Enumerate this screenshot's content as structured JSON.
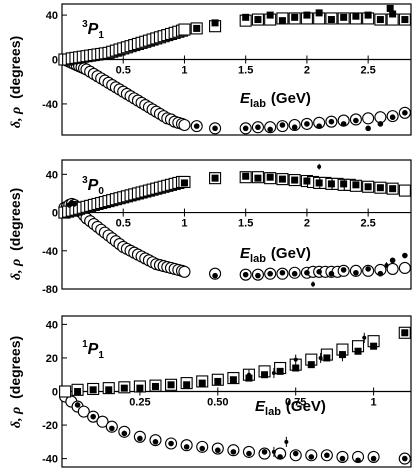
{
  "figure": {
    "ylabel": "δ, ρ (degrees)",
    "ylabel_symbols": "δ, ρ",
    "ylabel_unit": "(degrees)"
  },
  "chart_data": [
    {
      "type": "scatter",
      "panel_label": {
        "sup": "3",
        "letter": "P",
        "sub": "1"
      },
      "xlabel": {
        "main": "E",
        "sub": "lab",
        "unit": "(GeV)"
      },
      "xlim": [
        0,
        2.85
      ],
      "ylim": [
        -68,
        50
      ],
      "xticks": [
        0.5,
        1,
        1.5,
        2,
        2.5
      ],
      "xtick_labels": [
        "0.5",
        "1",
        "1.5",
        "2",
        "2.5"
      ],
      "yticks": [
        -40,
        0,
        40
      ],
      "ytick_labels": [
        "-40",
        "0",
        "40"
      ],
      "grid": false,
      "legend": "none",
      "series": [
        {
          "marker": "open-square",
          "x": [
            0.02,
            0.05,
            0.08,
            0.11,
            0.14,
            0.17,
            0.2,
            0.23,
            0.26,
            0.29,
            0.32,
            0.35,
            0.38,
            0.41,
            0.44,
            0.47,
            0.5,
            0.53,
            0.56,
            0.59,
            0.62,
            0.65,
            0.68,
            0.71,
            0.74,
            0.77,
            0.8,
            0.83,
            0.86,
            0.89,
            0.92,
            0.95,
            0.98,
            1.0,
            1.1,
            1.25,
            1.5,
            1.6,
            1.7,
            1.8,
            1.9,
            2.0,
            2.1,
            2.2,
            2.3,
            2.4,
            2.5,
            2.6,
            2.7,
            2.8
          ],
          "y": [
            0,
            0,
            1,
            1.5,
            2,
            2.5,
            3,
            3.5,
            4,
            4.5,
            5,
            5.5,
            6,
            7,
            8,
            9,
            10,
            11,
            12,
            13,
            14,
            15,
            16,
            17,
            18,
            19,
            20,
            21,
            22,
            23,
            24,
            25,
            26,
            27,
            28,
            30,
            35,
            36,
            36,
            37,
            37,
            37,
            37,
            37,
            37,
            37,
            37,
            36,
            36,
            36
          ]
        },
        {
          "marker": "filled-square",
          "x": [
            1.1,
            1.25,
            1.5,
            1.6,
            1.7,
            1.8,
            1.9,
            2.0,
            2.1,
            2.2,
            2.3,
            2.4,
            2.5,
            2.6,
            2.68,
            2.7,
            2.8
          ],
          "y": [
            28,
            33,
            38,
            36,
            40,
            35,
            38,
            40,
            42,
            36,
            38,
            39,
            40,
            36,
            46,
            41,
            36
          ]
        },
        {
          "marker": "open-circle",
          "x": [
            0.02,
            0.04,
            0.06,
            0.08,
            0.1,
            0.12,
            0.14,
            0.16,
            0.18,
            0.2,
            0.23,
            0.26,
            0.29,
            0.32,
            0.35,
            0.38,
            0.41,
            0.44,
            0.47,
            0.5,
            0.53,
            0.56,
            0.59,
            0.62,
            0.65,
            0.68,
            0.71,
            0.74,
            0.77,
            0.8,
            0.83,
            0.86,
            0.89,
            0.92,
            0.95,
            0.98,
            1.0,
            1.1,
            1.25,
            1.5,
            1.6,
            1.7,
            1.8,
            1.9,
            2.0,
            2.1,
            2.2,
            2.3,
            2.4,
            2.5,
            2.6,
            2.7,
            2.8
          ],
          "y": [
            0,
            -1,
            -2,
            -3,
            -4,
            -5,
            -6,
            -7,
            -8,
            -9,
            -11,
            -13,
            -15,
            -17,
            -19,
            -21,
            -23,
            -25,
            -27,
            -29,
            -31,
            -33,
            -35,
            -37,
            -39,
            -41,
            -43,
            -45,
            -47,
            -49,
            -51,
            -53,
            -54,
            -56,
            -57,
            -58,
            -59,
            -60,
            -62,
            -62,
            -61,
            -61,
            -60,
            -59,
            -58,
            -57,
            -56,
            -55,
            -54,
            -53,
            -52,
            -51,
            -48
          ]
        },
        {
          "marker": "filled-circle",
          "x": [
            1.1,
            1.25,
            1.5,
            1.6,
            1.7,
            1.8,
            1.9,
            2.0,
            2.1,
            2.2,
            2.3,
            2.4,
            2.5,
            2.6,
            2.7,
            2.8
          ],
          "y": [
            -60,
            -62,
            -62,
            -61,
            -63,
            -59,
            -61,
            -58,
            -60,
            -56,
            -58,
            -55,
            -62,
            -58,
            -52,
            -48
          ]
        }
      ]
    },
    {
      "type": "scatter",
      "panel_label": {
        "sup": "3",
        "letter": "P",
        "sub": "0"
      },
      "xlabel": {
        "main": "E",
        "sub": "lab",
        "unit": "(GeV)"
      },
      "xlim": [
        0,
        2.85
      ],
      "ylim": [
        -80,
        55
      ],
      "xticks": [
        0.5,
        1,
        1.5,
        2,
        2.5
      ],
      "xtick_labels": [
        "0.5",
        "1",
        "1.5",
        "2",
        "2.5"
      ],
      "yticks": [
        -80,
        -40,
        0,
        40
      ],
      "ytick_labels": [
        "-80",
        "-40",
        "0",
        "40"
      ],
      "grid": false,
      "legend": "none",
      "series": [
        {
          "marker": "open-square",
          "x": [
            0.02,
            0.05,
            0.08,
            0.11,
            0.14,
            0.17,
            0.2,
            0.23,
            0.26,
            0.29,
            0.32,
            0.35,
            0.38,
            0.41,
            0.44,
            0.47,
            0.5,
            0.53,
            0.56,
            0.59,
            0.62,
            0.65,
            0.68,
            0.71,
            0.74,
            0.77,
            0.8,
            0.83,
            0.86,
            0.89,
            0.92,
            0.95,
            0.98,
            1.0,
            1.25,
            1.5,
            1.6,
            1.7,
            1.8,
            1.9,
            2.0,
            2.05,
            2.1,
            2.15,
            2.2,
            2.25,
            2.3,
            2.35,
            2.4,
            2.5,
            2.6,
            2.7,
            2.8
          ],
          "y": [
            0,
            1,
            2,
            3,
            4,
            5,
            6,
            7,
            8,
            9,
            10,
            11,
            12,
            13,
            14,
            15,
            16,
            17,
            18,
            19,
            20,
            21,
            22,
            23,
            24,
            25,
            26,
            27,
            28,
            29,
            30,
            31,
            32,
            32,
            36,
            37,
            37,
            36,
            35,
            34,
            33,
            32,
            31,
            31,
            30,
            30,
            29,
            29,
            28,
            27,
            26,
            25,
            23
          ]
        },
        {
          "marker": "filled-square",
          "x": [
            1.0,
            1.25,
            1.5,
            1.6,
            1.7,
            1.8,
            1.9,
            2.0,
            2.1,
            2.2,
            2.3,
            2.4,
            2.5,
            2.6,
            2.7
          ],
          "y": [
            31,
            36,
            38,
            36,
            37,
            35,
            34,
            33,
            31,
            30,
            30,
            29,
            27,
            26,
            25
          ]
        },
        {
          "marker": "open-circle",
          "x": [
            0.02,
            0.04,
            0.06,
            0.08,
            0.1,
            0.12,
            0.14,
            0.16,
            0.18,
            0.2,
            0.23,
            0.26,
            0.29,
            0.32,
            0.35,
            0.38,
            0.41,
            0.44,
            0.47,
            0.5,
            0.53,
            0.56,
            0.59,
            0.62,
            0.65,
            0.68,
            0.71,
            0.74,
            0.77,
            0.8,
            0.83,
            0.86,
            0.89,
            0.92,
            0.95,
            0.98,
            1.0,
            1.25,
            1.5,
            1.6,
            1.7,
            1.8,
            1.9,
            2.0,
            2.05,
            2.1,
            2.15,
            2.2,
            2.25,
            2.3,
            2.4,
            2.5,
            2.6,
            2.7,
            2.8
          ],
          "y": [
            5,
            6,
            8,
            9,
            8,
            6,
            3,
            0,
            -3,
            -6,
            -9,
            -12,
            -15,
            -18,
            -21,
            -24,
            -27,
            -30,
            -33,
            -36,
            -38,
            -40,
            -42,
            -44,
            -46,
            -48,
            -50,
            -52,
            -54,
            -55,
            -56,
            -57,
            -58,
            -59,
            -60,
            -61,
            -62,
            -64,
            -65,
            -65,
            -64,
            -64,
            -63,
            -63,
            -62,
            -62,
            -62,
            -62,
            -62,
            -61,
            -61,
            -61,
            -60,
            -59,
            -58
          ]
        },
        {
          "marker": "filled-circle",
          "x": [
            0.06,
            0.08,
            0.1,
            1.25,
            1.5,
            1.6,
            1.7,
            1.8,
            1.9,
            2.0,
            2.1,
            2.2,
            2.3,
            2.4,
            2.5,
            2.6,
            2.7,
            2.8
          ],
          "y": [
            8,
            10,
            9,
            -66,
            -65,
            -66,
            -64,
            -63,
            -64,
            -63,
            -62,
            -64,
            -60,
            -63,
            -59,
            -64,
            -50,
            -45
          ]
        },
        {
          "marker": "error-bar",
          "x": [
            2.05,
            2.1,
            2.65
          ],
          "y": [
            -75,
            48,
            -55
          ],
          "err": [
            3,
            3,
            3
          ]
        }
      ]
    },
    {
      "type": "scatter",
      "panel_label": {
        "sup": "1",
        "letter": "P",
        "sub": "1"
      },
      "xlabel": {
        "main": "E",
        "sub": "lab",
        "unit": "(GeV)"
      },
      "xlim": [
        0,
        1.12
      ],
      "ylim": [
        -45,
        45
      ],
      "xticks": [
        0.25,
        0.5,
        0.75,
        1
      ],
      "xtick_labels": [
        "0.25",
        "0.50",
        "0.75",
        "1"
      ],
      "yticks": [
        -40,
        -20,
        0,
        20,
        40
      ],
      "ytick_labels": [
        "-40",
        "-20",
        "0",
        "20",
        "40"
      ],
      "grid": false,
      "legend": "none",
      "series": [
        {
          "marker": "open-square",
          "x": [
            0.01,
            0.05,
            0.1,
            0.15,
            0.2,
            0.25,
            0.3,
            0.35,
            0.4,
            0.45,
            0.5,
            0.55,
            0.6,
            0.65,
            0.7,
            0.75,
            0.8,
            0.85,
            0.9,
            0.95,
            1.0,
            1.1
          ],
          "y": [
            0,
            1,
            1.5,
            2,
            2.5,
            3,
            3.5,
            4,
            5,
            6,
            7,
            8,
            10,
            12,
            14,
            16,
            19,
            22,
            25,
            27,
            30,
            35
          ]
        },
        {
          "marker": "filled-square",
          "x": [
            0.05,
            0.1,
            0.15,
            0.2,
            0.25,
            0.3,
            0.35,
            0.4,
            0.45,
            0.5,
            0.55,
            0.6,
            0.65,
            0.7,
            0.75,
            0.8,
            0.85,
            0.9,
            0.95,
            1.0,
            1.1
          ],
          "y": [
            0,
            1,
            1,
            2,
            2,
            3,
            4,
            4,
            5,
            6,
            7,
            8,
            10,
            12,
            14,
            16,
            20,
            22,
            24,
            27,
            35
          ]
        },
        {
          "marker": "open-circle",
          "x": [
            0.01,
            0.03,
            0.05,
            0.07,
            0.1,
            0.13,
            0.16,
            0.2,
            0.25,
            0.3,
            0.35,
            0.4,
            0.45,
            0.5,
            0.55,
            0.6,
            0.65,
            0.7,
            0.75,
            0.8,
            0.85,
            0.9,
            0.95,
            1.0,
            1.1
          ],
          "y": [
            -3,
            -6,
            -9,
            -12,
            -15,
            -18,
            -21,
            -24,
            -27,
            -29,
            -31,
            -32,
            -33,
            -34,
            -35,
            -36,
            -37,
            -37,
            -38,
            -38,
            -38,
            -39,
            -39,
            -39,
            -40
          ]
        },
        {
          "marker": "filled-circle",
          "x": [
            0.05,
            0.1,
            0.16,
            0.2,
            0.25,
            0.3,
            0.35,
            0.4,
            0.45,
            0.5,
            0.55,
            0.6,
            0.65,
            0.7,
            0.75,
            0.8,
            0.85,
            0.9,
            0.95,
            1.0,
            1.1
          ],
          "y": [
            -8,
            -15,
            -22,
            -25,
            -28,
            -30,
            -31,
            -33,
            -34,
            -35,
            -36,
            -37,
            -36,
            -39,
            -37,
            -39,
            -38,
            -40,
            -41,
            -40,
            -40
          ]
        },
        {
          "marker": "error-bar",
          "x": [
            0.6,
            0.68,
            0.75,
            0.83,
            0.9,
            0.97
          ],
          "y": [
            10,
            11,
            19,
            20,
            21,
            32
          ],
          "err": [
            3,
            3,
            3,
            3,
            3,
            3
          ]
        },
        {
          "marker": "error-bar",
          "x": [
            0.68,
            0.72
          ],
          "y": [
            -36,
            -30
          ],
          "err": [
            3,
            3
          ]
        }
      ]
    }
  ]
}
